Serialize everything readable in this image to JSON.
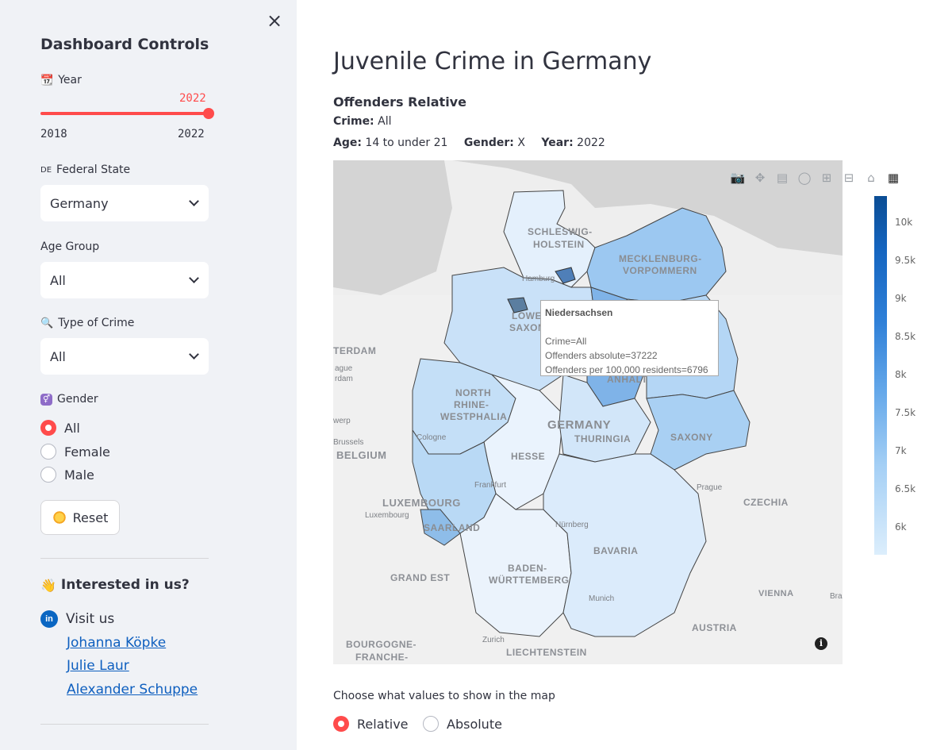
{
  "sidebar": {
    "title": "Dashboard Controls",
    "close_label": "×",
    "year": {
      "label": "Year",
      "value": "2022",
      "min": "2018",
      "max": "2022",
      "fraction": 1.0
    },
    "federal_state": {
      "label": "Federal State",
      "flag": "DE",
      "value": "Germany"
    },
    "age_group": {
      "label": "Age Group",
      "value": "All"
    },
    "crime_type": {
      "label": "Type of Crime",
      "value": "All"
    },
    "gender": {
      "label": "Gender",
      "options": [
        "All",
        "Female",
        "Male"
      ],
      "selected": "All"
    },
    "reset_label": "Reset",
    "interested_label": "Interested in us?",
    "visit_label": "Visit us",
    "linkedin_icon": "in",
    "links": [
      "Johanna Köpke",
      "Julie Laur",
      "Alexander Schuppe"
    ]
  },
  "main": {
    "title": "Juvenile Crime in Germany",
    "subtitle": "Offenders Relative",
    "crime_key": "Crime:",
    "crime_value": "All",
    "age_key": "Age:",
    "age_value": "14 to under 21",
    "gender_key": "Gender:",
    "gender_value": "X",
    "year_key": "Year:",
    "year_value": "2022",
    "choose_label": "Choose what values to show in the map",
    "value_options": [
      "Relative",
      "Absolute"
    ],
    "value_selected": "Relative"
  },
  "map": {
    "states": [
      {
        "name": "SCHLESWIG-",
        "name2": "HOLSTEIN"
      },
      {
        "name": "MECKLENBURG-",
        "name2": "VORPOMMERN"
      },
      {
        "name": "LOWE",
        "name2": "SAXON"
      },
      {
        "name": "ANHALT"
      },
      {
        "name": "NORTH",
        "name2": "RHINE-",
        "name3": "WESTPHALIA"
      },
      {
        "name": "GERMANY"
      },
      {
        "name": "THURINGIA"
      },
      {
        "name": "SAXONY"
      },
      {
        "name": "HESSE"
      },
      {
        "name": "SAARLAND"
      },
      {
        "name": "BAVARIA"
      },
      {
        "name": "BADEN-",
        "name2": "WÜRTTEMBERG"
      }
    ],
    "outside": [
      "BELGIUM",
      "LUXEMBOURG",
      "GRAND EST",
      "CZECHIA",
      "AUSTRIA",
      "LIECHTENSTEIN",
      "BOURGOGNE-",
      "FRANCHE-",
      "TERDAM",
      "VIENNA"
    ],
    "cities": [
      "Hamburg",
      "Cologne",
      "Frankfurt",
      "Nürnberg",
      "Munich",
      "Prague",
      "Luxembourg",
      "Zurich",
      "Brussels",
      "ague",
      "rdam",
      "werp",
      "Bra"
    ],
    "tooltip": {
      "title": "Niedersachsen",
      "line1": "Crime=All",
      "line2": "Offenders absolute=37222",
      "line3": "Offenders per 100,000 residents=6796"
    },
    "colorbar_ticks": [
      "10k",
      "9.5k",
      "9k",
      "8.5k",
      "8k",
      "7.5k",
      "7k",
      "6.5k",
      "6k"
    ],
    "colorscale": [
      "#0b4d94",
      "#dceefc"
    ],
    "info_label": "i",
    "modebar": [
      "camera-icon",
      "pan-icon",
      "box-select-icon",
      "lasso-icon",
      "zoom-in-icon",
      "zoom-out-icon",
      "home-icon",
      "plotly-logo-icon"
    ]
  }
}
